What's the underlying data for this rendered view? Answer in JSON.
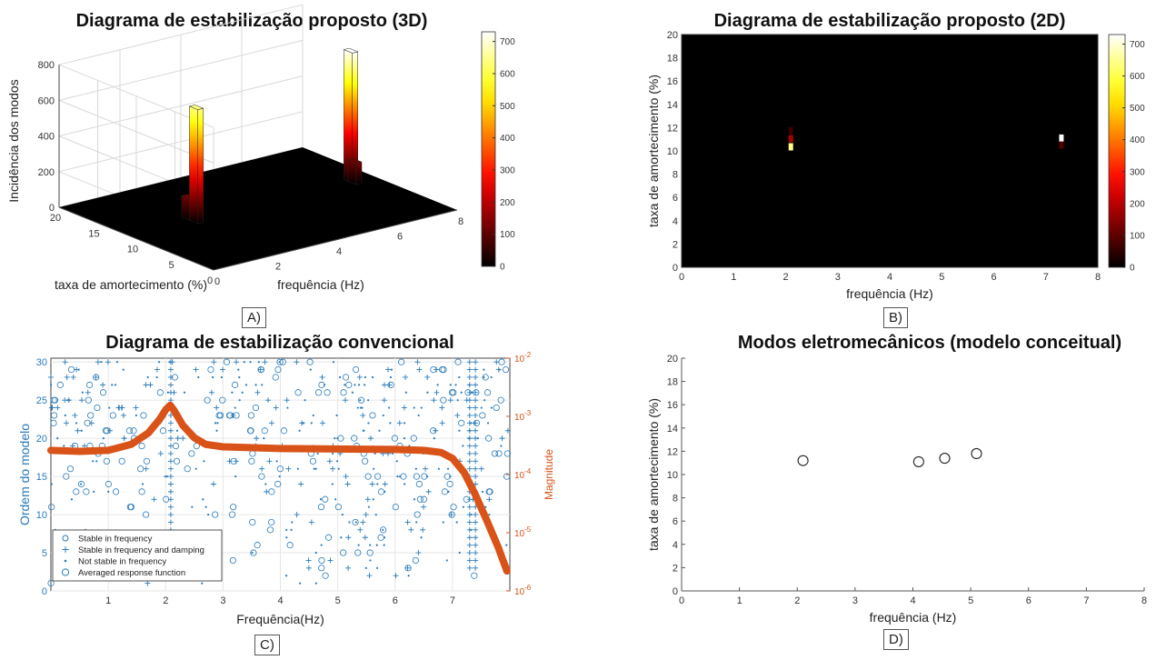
{
  "chart_data": [
    {
      "id": "A",
      "type": "bar3d",
      "title": "Diagrama de estabilização proposto (3D)",
      "xlabel": "frequência (Hz)",
      "ylabel": "taxa de amortecimento (%)",
      "zlabel": "Incidência dos modos",
      "xlim": [
        0,
        8
      ],
      "xticks": [
        0,
        2,
        4,
        6,
        8
      ],
      "ylim": [
        0,
        20
      ],
      "yticks": [
        0,
        5,
        10,
        15,
        20
      ],
      "zlim": [
        0,
        800
      ],
      "zticks": [
        0,
        200,
        400,
        600,
        800
      ],
      "colorbar": {
        "min": 0,
        "max": 730,
        "ticks": [
          0,
          100,
          200,
          300,
          400,
          500,
          600,
          700
        ]
      },
      "bars": [
        {
          "x": 2.1,
          "y": 10.5,
          "z": 640
        },
        {
          "x": 2.1,
          "y": 11.5,
          "z": 120
        },
        {
          "x": 7.3,
          "y": 11.0,
          "z": 730
        },
        {
          "x": 7.3,
          "y": 10.5,
          "z": 120
        }
      ],
      "tag": "A)"
    },
    {
      "id": "B",
      "type": "heatmap",
      "title": "Diagrama de estabilização proposto (2D)",
      "xlabel": "frequência (Hz)",
      "ylabel": "taxa de amortecimento (%)",
      "xlim": [
        0,
        8
      ],
      "xticks": [
        0,
        1,
        2,
        3,
        4,
        5,
        6,
        7,
        8
      ],
      "ylim": [
        0,
        20
      ],
      "yticks": [
        0,
        2,
        4,
        6,
        8,
        10,
        12,
        14,
        16,
        18,
        20
      ],
      "colorbar": {
        "min": 0,
        "max": 730,
        "ticks": [
          0,
          100,
          200,
          300,
          400,
          500,
          600,
          700
        ]
      },
      "cells": [
        {
          "x": 2.1,
          "y": 10.35,
          "value": 640
        },
        {
          "x": 2.1,
          "y": 11.05,
          "value": 180
        },
        {
          "x": 2.1,
          "y": 11.75,
          "value": 60
        },
        {
          "x": 7.3,
          "y": 11.1,
          "value": 730
        },
        {
          "x": 7.3,
          "y": 10.5,
          "value": 90
        }
      ],
      "tag": "B)"
    },
    {
      "id": "C",
      "type": "scatter",
      "title": "Diagrama de estabilização convencional",
      "xlabel": "Frequência(Hz)",
      "ylabel": "Ordem do modelo",
      "y2label": "Magnitude",
      "xlim": [
        0,
        8
      ],
      "xticks": [
        1,
        2,
        3,
        4,
        5,
        6,
        7
      ],
      "ylim": [
        0,
        30.5
      ],
      "yticks": [
        0,
        5,
        10,
        15,
        20,
        25,
        30
      ],
      "y2scale": "log",
      "y2lim": [
        1e-06,
        0.01
      ],
      "y2ticklabels": [
        "10^-6",
        "10^-5",
        "10^-4",
        "10^-3",
        "10^-2"
      ],
      "legend": {
        "position": "bottom-left",
        "entries": [
          {
            "marker": "o",
            "label": "Stable in frequency"
          },
          {
            "marker": "+",
            "label": "Stable in frequency and damping"
          },
          {
            "marker": ".",
            "label": "Not stable in frequency"
          },
          {
            "marker": "O",
            "label": "Averaged response function"
          }
        ]
      },
      "stable_modes_hz": [
        2.09,
        7.3,
        7.4
      ],
      "response_function": {
        "x": [
          0.0,
          0.5,
          1.0,
          1.4,
          1.7,
          1.9,
          2.0,
          2.08,
          2.15,
          2.3,
          2.5,
          2.7,
          3.0,
          4.0,
          5.0,
          6.0,
          6.5,
          6.8,
          7.0,
          7.2,
          7.4,
          7.6,
          7.8,
          7.95
        ],
        "y": [
          0.00026,
          0.00025,
          0.00026,
          0.00033,
          0.00052,
          0.0009,
          0.0013,
          0.00155,
          0.00125,
          0.0007,
          0.00043,
          0.00033,
          0.0003,
          0.00028,
          0.000275,
          0.00027,
          0.00026,
          0.00024,
          0.00019,
          0.00011,
          4.5e-05,
          1.6e-05,
          5.5e-06,
          2.2e-06
        ]
      },
      "tag": "C)"
    },
    {
      "id": "D",
      "type": "scatter",
      "title": "Modos eletromecânicos (modelo conceitual)",
      "xlabel": "frequência (Hz)",
      "ylabel": "taxa de amortecimento (%)",
      "xlim": [
        0,
        8
      ],
      "xticks": [
        0,
        1,
        2,
        3,
        4,
        5,
        6,
        7,
        8
      ],
      "ylim": [
        0,
        20
      ],
      "yticks": [
        0,
        2,
        4,
        6,
        8,
        10,
        12,
        14,
        16,
        18,
        20
      ],
      "points": [
        {
          "x": 2.1,
          "y": 11.2
        },
        {
          "x": 4.1,
          "y": 11.1
        },
        {
          "x": 4.55,
          "y": 11.4
        },
        {
          "x": 5.1,
          "y": 11.8
        }
      ],
      "tag": "D)"
    }
  ]
}
